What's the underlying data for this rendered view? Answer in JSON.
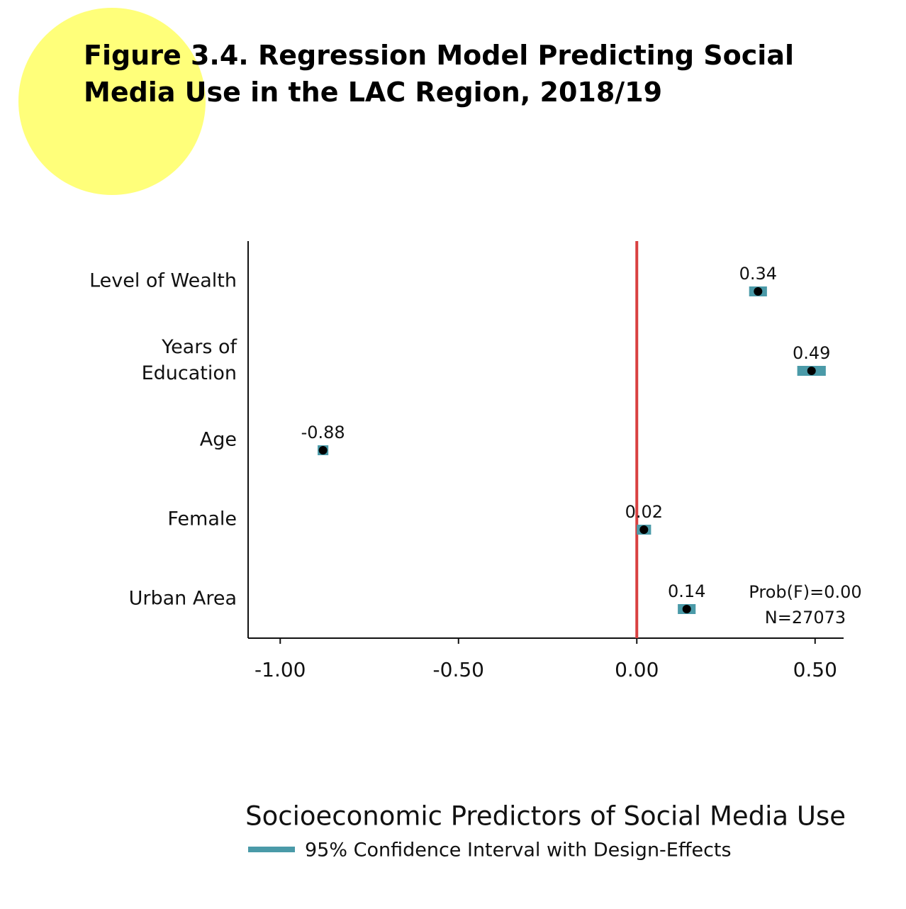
{
  "chart_data": {
    "type": "coefplot",
    "title": "Figure 3.4. Regression Model Predicting Social Media Use in the LAC Region, 2018/19",
    "xlabel": "Socioeconomic Predictors of Social Media Use",
    "categories": [
      "Level of Wealth",
      "Years of Education",
      "Age",
      "Female",
      "Urban Area"
    ],
    "values": [
      0.34,
      0.49,
      -0.88,
      0.02,
      0.14
    ],
    "ci_low": [
      0.315,
      0.45,
      -0.895,
      0.0,
      0.115
    ],
    "ci_high": [
      0.365,
      0.53,
      -0.865,
      0.04,
      0.165
    ],
    "ci_color": "#4a9aa8",
    "point_color": "#000000",
    "ci_legend": "95% Confidence Interval with Design-Effects",
    "reference_line": {
      "value": 0,
      "color": "#d94040"
    },
    "annotations": [
      "Prob(F)=0.00",
      "N=27073"
    ],
    "xlim": [
      -1.09,
      0.58
    ],
    "xticks": [
      {
        "value": -1,
        "label": "-1.00"
      },
      {
        "value": -0.5,
        "label": "-0.50"
      },
      {
        "value": 0,
        "label": "0.00"
      },
      {
        "value": 0.5,
        "label": "0.50"
      }
    ]
  }
}
